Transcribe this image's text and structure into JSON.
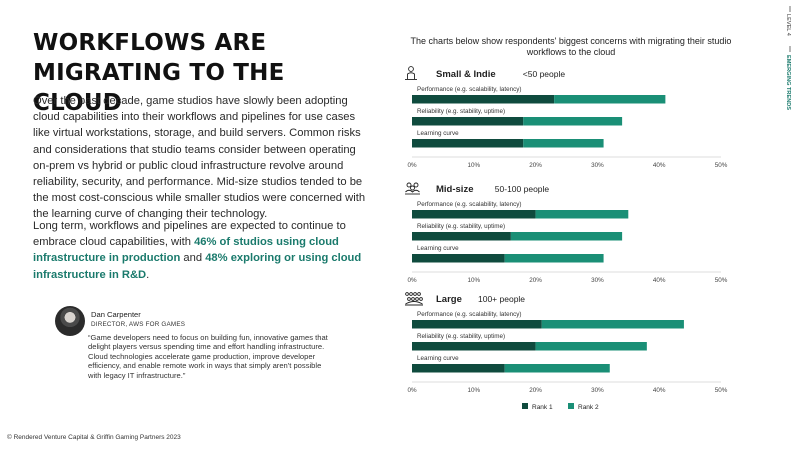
{
  "header": {
    "title_line1": "WORKFLOWS ARE",
    "title_line2": "MIGRATING TO THE CLOUD"
  },
  "side_tag": {
    "level": "LEVEL 4",
    "section": "EMERGING TRENDS"
  },
  "body": {
    "paragraph1": "Over the past decade, game studios have slowly been adopting cloud capabilities into their workflows and pipelines for use cases like virtual workstations, storage, and build servers. Common risks and considerations that studio teams consider between operating on-prem vs hybrid or public cloud infrastructure revolve around reliability, security, and performance. Mid-size studios tended to be the most cost-conscious while smaller studios were concerned with the learning curve of changing their technology.",
    "paragraph2_pre": "Long term, workflows and pipelines are expected to continue to embrace cloud capabilities, with ",
    "paragraph2_hl1": "46% of studios using cloud infrastructure in production",
    "paragraph2_mid": " and ",
    "paragraph2_hl2": "48% exploring or using cloud infrastructure in R&D",
    "paragraph2_end": "."
  },
  "quote": {
    "name": "Dan Carpenter",
    "role": "DIRECTOR, AWS FOR GAMES",
    "text": "“Game developers need to focus on building fun, innovative games that delight players versus spending time and effort handling infrastructure. Cloud technologies accelerate game production, improve developer efficiency, and enable remote work in ways that simply aren't possible with legacy IT infrastructure.”"
  },
  "footer": {
    "copyright": "© Rendered Venture Capital & Griffin Gaming Partners 2023"
  },
  "colors": {
    "rank1": "#0f4b3e",
    "rank2": "#1a8f76",
    "accent_text": "#1a7a6c",
    "axis": "#bbbbbb"
  },
  "chart_data": {
    "type": "bar",
    "orientation": "horizontal",
    "stacked": true,
    "title": "The charts below show respondents' biggest concerns with migrating their studio workflows to the cloud",
    "xlim": [
      0,
      50
    ],
    "ticks": [
      "0%",
      "10%",
      "20%",
      "30%",
      "40%",
      "50%"
    ],
    "tick_values": [
      0,
      10,
      20,
      30,
      40,
      50
    ],
    "legend": [
      "Rank 1",
      "Rank 2"
    ],
    "legend_position": "bottom",
    "panels": [
      {
        "name": "Small & Indie",
        "size": "<50 people",
        "icon": "person-icon",
        "categories": [
          "Performance (e.g. scalability, latency)",
          "Reliability (e.g. stability, uptime)",
          "Learning curve"
        ],
        "series": [
          {
            "name": "Rank 1",
            "values": [
              23,
              18,
              18
            ]
          },
          {
            "name": "Rank 2",
            "values": [
              18,
              16,
              13
            ]
          }
        ]
      },
      {
        "name": "Mid-size",
        "size": "50-100 people",
        "icon": "group-icon",
        "categories": [
          "Performance (e.g. scalability, latency)",
          "Reliability (e.g. stability, uptime)",
          "Learning curve"
        ],
        "series": [
          {
            "name": "Rank 1",
            "values": [
              20,
              16,
              15
            ]
          },
          {
            "name": "Rank 2",
            "values": [
              15,
              18,
              16
            ]
          }
        ]
      },
      {
        "name": "Large",
        "size": "100+ people",
        "icon": "crowd-icon",
        "categories": [
          "Performance (e.g. scalability, latency)",
          "Reliability (e.g. stability, uptime)",
          "Learning curve"
        ],
        "series": [
          {
            "name": "Rank 1",
            "values": [
              21,
              20,
              15
            ]
          },
          {
            "name": "Rank 2",
            "values": [
              23,
              18,
              17
            ]
          }
        ]
      }
    ]
  }
}
